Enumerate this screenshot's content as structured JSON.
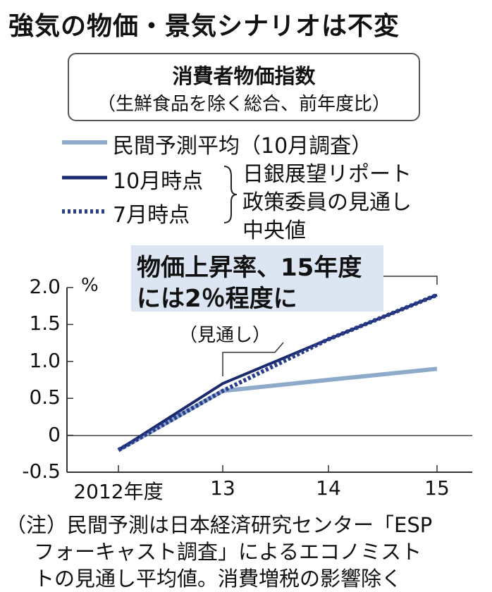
{
  "title": "強気の物価・景気シナリオは不変",
  "box": {
    "title": "消費者物価指数",
    "subtitle": "（生鮮食品を除く総合、前年度比）"
  },
  "legend": {
    "items": [
      {
        "label": "民間予測平均（10月調査）",
        "color": "#8eaacb",
        "style": "solid"
      },
      {
        "label": "10月時点",
        "color": "#1a2a6e",
        "style": "solid"
      },
      {
        "label": "7月時点",
        "color": "#2a3c8c",
        "style": "dotted"
      }
    ],
    "group_label": [
      "日銀展望リポート",
      "政策委員の見通し",
      "中央値"
    ]
  },
  "callout": {
    "line1": "物価上昇率、15年度",
    "line2": "には2％程度に"
  },
  "annotation": "（見通し）",
  "chart_data": {
    "type": "line",
    "categories": [
      "2012年度",
      "13",
      "14",
      "15"
    ],
    "yticks": [
      "2.0",
      "1.5",
      "1.0",
      "0.5",
      "0",
      "-0.5"
    ],
    "yunit": "%",
    "ylim": [
      -0.5,
      2.0
    ],
    "series": [
      {
        "name": "民間予測平均（10月調査）",
        "values": [
          -0.2,
          0.6,
          0.75,
          0.9
        ],
        "color": "#8eaacb"
      },
      {
        "name": "10月時点",
        "values": [
          -0.2,
          0.7,
          1.3,
          1.9
        ],
        "color": "#1a2a6e"
      },
      {
        "name": "7月時点",
        "values": [
          -0.2,
          0.6,
          1.3,
          1.9
        ],
        "color": "#2a3c8c"
      }
    ]
  },
  "notes": [
    "（注）民間予測は日本経済研究センター「ESP",
    "フォーキャスト調査」によるエコノミスト",
    "トの見通し平均値。消費増税の影響除く"
  ]
}
